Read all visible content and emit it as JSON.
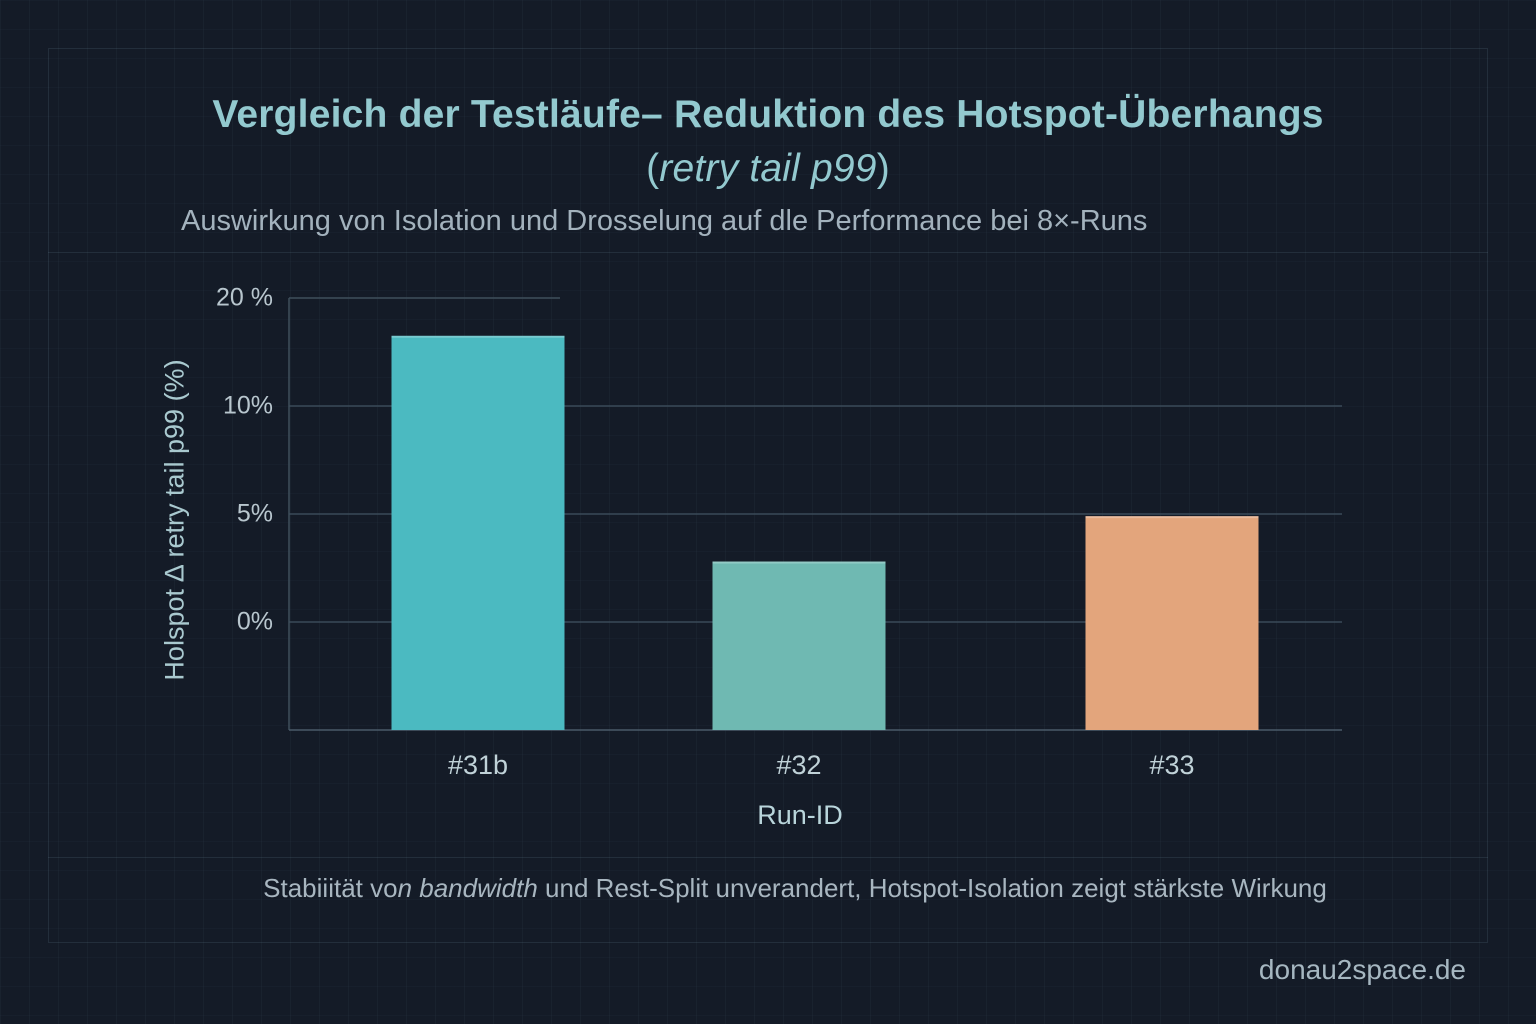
{
  "header": {
    "title_line1": "Vergleich der Testläufe– Reduktion des Hotspot-Überhangs",
    "title_line2_open": "(",
    "title_line2_italic": "retry tail p99",
    "title_line2_close": ")",
    "subtitle": "Auswirkung von Isolation und Drosselung auf dle Performance bei 8×-Runs"
  },
  "chart_data": {
    "type": "bar",
    "title": "Vergleich der Testläufe– Reduktion des Hotspot-Überhangs (retry tail p99)",
    "subtitle": "Auswirkung von Isolation und Drosselung auf dle Performance bei 8×-Runs",
    "xlabel": "Run-ID",
    "ylabel": "Holspot ∆ retry tail p99 (%)",
    "categories": [
      "#31b",
      "#32",
      "#33"
    ],
    "values": [
      16.5,
      2.8,
      4.9
    ],
    "colors": [
      "#4bbac1",
      "#6fb9b2",
      "#e3a57c"
    ],
    "yticks": [
      {
        "value": 20,
        "label": "20 %"
      },
      {
        "value": 10,
        "label": "10%"
      },
      {
        "value": 5,
        "label": "5%"
      },
      {
        "value": 0,
        "label": "0%"
      }
    ],
    "ylim": [
      -5,
      20
    ],
    "grid": true,
    "legend": "none"
  },
  "footer": {
    "note_pre": "Stabiiität vo",
    "note_italic": "n bandwidth",
    "note_post": " und Rest-Split unverandert, Hotspot-Isolation zeigt stärkste Wirkung",
    "brand": "donau2space.de"
  },
  "colors": {
    "background": "#141b27",
    "title": "#93c9cf",
    "text": "#a8b6c0"
  }
}
